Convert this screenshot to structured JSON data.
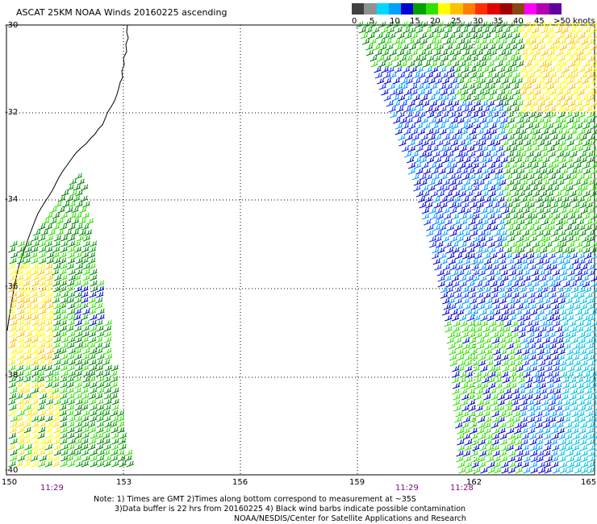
{
  "title": "ASCAT 25KM NOAA Winds 20160225 ascending",
  "legend": {
    "labels": [
      "0",
      "5",
      "10",
      "15",
      "20",
      "25",
      "30",
      "35",
      "40",
      "45",
      ">50 knots"
    ],
    "colors": [
      "#404040",
      "#909090",
      "#00d8ff",
      "#00a0ff",
      "#0000d0",
      "#00a000",
      "#30e000",
      "#ffff00",
      "#ffc000",
      "#ff8000",
      "#ff3000",
      "#e00000",
      "#a00000",
      "#8b4513",
      "#ff00ff",
      "#b000b0",
      "#6000a0"
    ]
  },
  "lat_labels": [
    "-30",
    "-32",
    "-34",
    "-36",
    "-38",
    "-40"
  ],
  "lon_labels": [
    "150",
    "153",
    "156",
    "159",
    "162",
    "165"
  ],
  "pass_times": [
    "11:29",
    "11:29",
    "11:28"
  ],
  "notes": [
    "Note: 1) Times are GMT 2)Times along bottom correspond to measurement at ~35S",
    "3)Data buffer is 22 hrs from 20160225 4) Black wind barbs indicate possible contamination",
    "NOAA/NESDIS/Center for Satellite Applications and Research"
  ]
}
